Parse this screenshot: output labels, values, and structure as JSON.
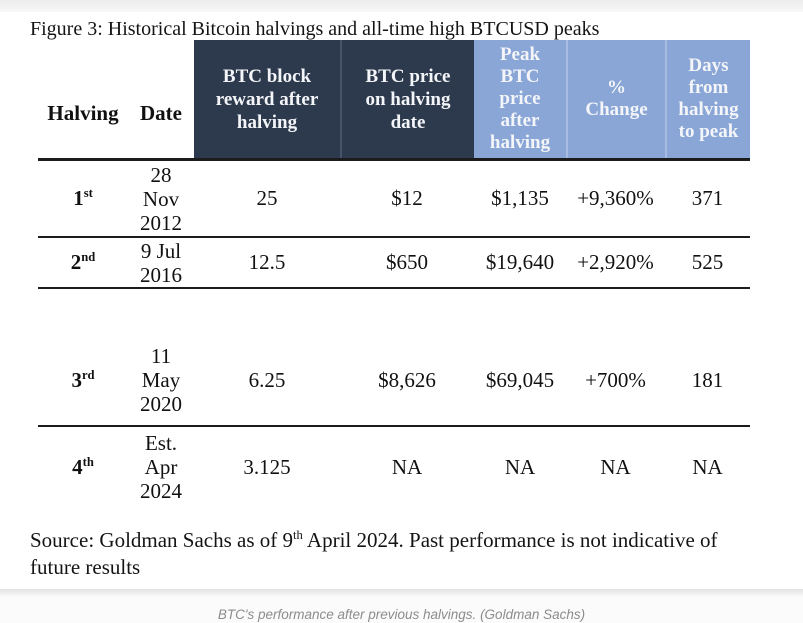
{
  "chart_data": {
    "type": "table",
    "title": "Figure 3: Historical Bitcoin halvings and all-time high BTCUSD peaks",
    "columns": [
      "Halving",
      "Date",
      "BTC block reward after halving",
      "BTC price on halving date",
      "Peak BTC price after halving",
      "% Change",
      "Days from halving to peak"
    ],
    "rows": [
      [
        "1st",
        "28 Nov 2012",
        "25",
        "$12",
        "$1,135",
        "+9,360%",
        "371"
      ],
      [
        "2nd",
        "9 Jul 2016",
        "12.5",
        "$650",
        "$19,640",
        "+2,920%",
        "525"
      ],
      [
        "3rd",
        "11 May 2020",
        "6.25",
        "$8,626",
        "$69,045",
        "+700%",
        "181"
      ],
      [
        "4th",
        "Est. Apr 2024",
        "3.125",
        "NA",
        "NA",
        "NA",
        "NA"
      ]
    ],
    "source_note": "Source: Goldman Sachs as of 9th April 2024. Past performance is not indicative of future results",
    "caption": "BTC's performance after previous halvings. (Goldman Sachs)"
  },
  "figure": {
    "title": "Figure 3: Historical Bitcoin halvings and all-time high BTCUSD peaks",
    "source": {
      "prefix": "Source: Goldman Sachs as of 9",
      "sup": "th",
      "suffix": " April 2024. Past performance is not indicative of future results"
    }
  },
  "table": {
    "headers": {
      "halving": "Halving",
      "date": "Date",
      "reward": "BTC block\nreward after\nhalving",
      "price_on_halving": "BTC price\non halving\ndate",
      "peak_price": "Peak\nBTC\nprice\nafter\nhalving",
      "pct_change": "%\nChange",
      "days_to_peak": "Days\nfrom\nhalving\nto peak"
    },
    "rows": [
      {
        "ord": "1",
        "ord_suffix": "st",
        "date": "28\nNov\n2012",
        "reward": "25",
        "price_on_halving": "$12",
        "peak_price": "$1,135",
        "pct_change": "+9,360%",
        "days_to_peak": "371"
      },
      {
        "ord": "2",
        "ord_suffix": "nd",
        "date": "9 Jul\n2016",
        "reward": "12.5",
        "price_on_halving": "$650",
        "peak_price": "$19,640",
        "pct_change": "+2,920%",
        "days_to_peak": "525"
      },
      {
        "ord": "3",
        "ord_suffix": "rd",
        "date": "11\nMay\n2020",
        "reward": "6.25",
        "price_on_halving": "$8,626",
        "peak_price": "$69,045",
        "pct_change": "+700%",
        "days_to_peak": "181"
      },
      {
        "ord": "4",
        "ord_suffix": "th",
        "date": "Est.\nApr\n2024",
        "reward": "3.125",
        "price_on_halving": "NA",
        "peak_price": "NA",
        "pct_change": "NA",
        "days_to_peak": "NA"
      }
    ]
  },
  "page": {
    "caption": "BTC's performance after previous halvings. (Goldman Sachs)"
  },
  "colors": {
    "dark_header_bg": "#2d3a4d",
    "light_header_bg": "#8aa6d7",
    "header_text": "#f3f5f8",
    "rule": "#1c1c1c",
    "caption_text": "#8c8c8c"
  }
}
